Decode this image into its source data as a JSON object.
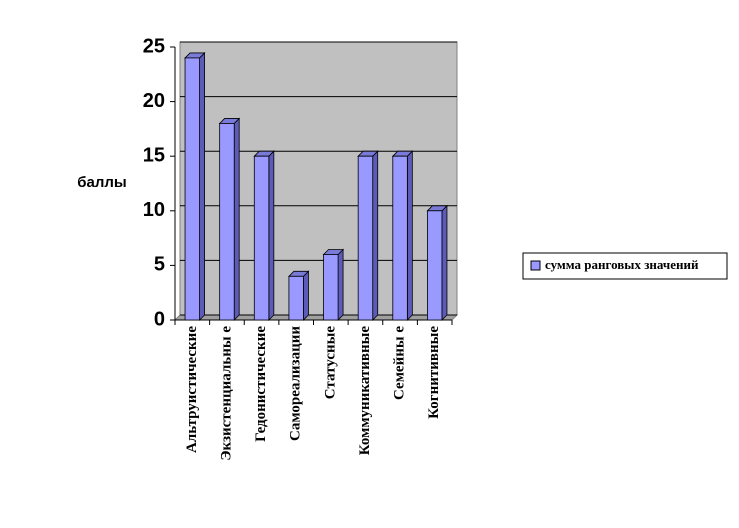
{
  "chart_data": {
    "type": "bar",
    "y_label": "баллы",
    "categories": [
      "Альтруистические",
      "Экзистенциальны е",
      "Гедонистические",
      "Самореализации",
      "Статусные",
      "Коммуникативные",
      "Семейны е",
      "Когнитивные"
    ],
    "series": [
      {
        "name": "сумма ранговых значений",
        "color": "#9999ff",
        "values": [
          24,
          18,
          15,
          4,
          6,
          15,
          15,
          10
        ]
      }
    ],
    "ylim": [
      0,
      25
    ],
    "yticks": [
      0,
      5,
      10,
      15,
      20,
      25
    ],
    "grid": true,
    "legend": "right"
  }
}
